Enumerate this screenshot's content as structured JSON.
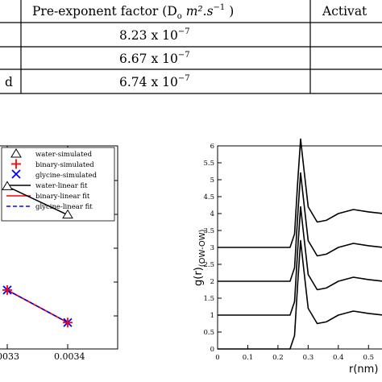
{
  "table": {
    "header_preexp": "Pre-exponent factor (D",
    "header_preexp_sub": "o",
    "header_preexp_units": "m²",
    "header_preexp_units2": ".s",
    "header_preexp_sup": "−1",
    "header_preexp_close": ")",
    "header_activation": "Activat",
    "rows": [
      {
        "label": "",
        "value_mantissa": "8.23 x 10",
        "value_exp": "−7"
      },
      {
        "label": "",
        "value_mantissa": "6.67 x 10",
        "value_exp": "−7"
      },
      {
        "label": "d",
        "value_mantissa": "6.74 x 10",
        "value_exp": "−7"
      }
    ]
  },
  "chart_data": [
    {
      "type": "line",
      "x_ticks": [
        "0033",
        "0.0034"
      ],
      "legend": [
        {
          "name": "water-simulated",
          "marker": "triangle",
          "color": "#000000"
        },
        {
          "name": "binary-simulated",
          "marker": "plus",
          "color": "#ff0000"
        },
        {
          "name": "glycine-simulated",
          "marker": "x",
          "color": "#0000ff"
        },
        {
          "name": "water-linear fit",
          "line": "solid",
          "color": "#000000"
        },
        {
          "name": "binary-linear fit",
          "line": "solid",
          "color": "#ff0000"
        },
        {
          "name": "glycine-linear fit",
          "line": "dashed",
          "color": "#0000ff"
        }
      ],
      "legend_position": "top-left",
      "xlim": [
        0.00325,
        0.00345
      ],
      "ylim": [
        0,
        1
      ],
      "series": [
        {
          "name": "water-simulated",
          "x": [
            0.0033,
            0.0034
          ],
          "y": [
            0.8,
            0.66
          ]
        },
        {
          "name": "binary-simulated",
          "x": [
            0.0033,
            0.0034
          ],
          "y": [
            0.29,
            0.13
          ]
        },
        {
          "name": "glycine-simulated",
          "x": [
            0.0033,
            0.0034
          ],
          "y": [
            0.29,
            0.13
          ]
        }
      ]
    },
    {
      "type": "line",
      "xlabel": "r(nm)",
      "ylabel": "g(r)",
      "ylabel_sub": "(OW-OW)",
      "x_ticks": [
        "0",
        "0.1",
        "0.2",
        "0.3",
        "0.4",
        "0.5"
      ],
      "y_ticks": [
        "0",
        "0.5",
        "1",
        "1.5",
        "2",
        "2.5",
        "3",
        "3.5",
        "4",
        "4.5",
        "5",
        "5.5",
        "6"
      ],
      "xlim": [
        0,
        0.55
      ],
      "ylim": [
        0,
        6
      ],
      "series": [
        {
          "offset": 0,
          "x": [
            0,
            0.24,
            0.255,
            0.265,
            0.275,
            0.285,
            0.3,
            0.33,
            0.36,
            0.4,
            0.45,
            0.5,
            0.55
          ],
          "y": [
            0,
            0,
            0.4,
            1.9,
            3.2,
            2.4,
            1.2,
            0.75,
            0.8,
            1.0,
            1.12,
            1.05,
            1.0
          ]
        },
        {
          "offset": 1,
          "x": [
            0,
            0.24,
            0.255,
            0.265,
            0.275,
            0.285,
            0.3,
            0.33,
            0.36,
            0.4,
            0.45,
            0.5,
            0.55
          ],
          "y": [
            0,
            0,
            0.4,
            1.9,
            3.2,
            2.4,
            1.2,
            0.75,
            0.8,
            1.0,
            1.12,
            1.05,
            1.0
          ]
        },
        {
          "offset": 2,
          "x": [
            0,
            0.24,
            0.255,
            0.265,
            0.275,
            0.285,
            0.3,
            0.33,
            0.36,
            0.4,
            0.45,
            0.5,
            0.55
          ],
          "y": [
            0,
            0,
            0.4,
            1.9,
            3.2,
            2.4,
            1.2,
            0.75,
            0.8,
            1.0,
            1.12,
            1.05,
            1.0
          ]
        },
        {
          "offset": 3,
          "x": [
            0,
            0.24,
            0.255,
            0.265,
            0.275,
            0.285,
            0.3,
            0.33,
            0.36,
            0.4,
            0.45,
            0.5,
            0.55
          ],
          "y": [
            0,
            0,
            0.4,
            1.9,
            3.2,
            2.4,
            1.2,
            0.75,
            0.8,
            1.0,
            1.12,
            1.05,
            1.0
          ]
        }
      ]
    }
  ]
}
